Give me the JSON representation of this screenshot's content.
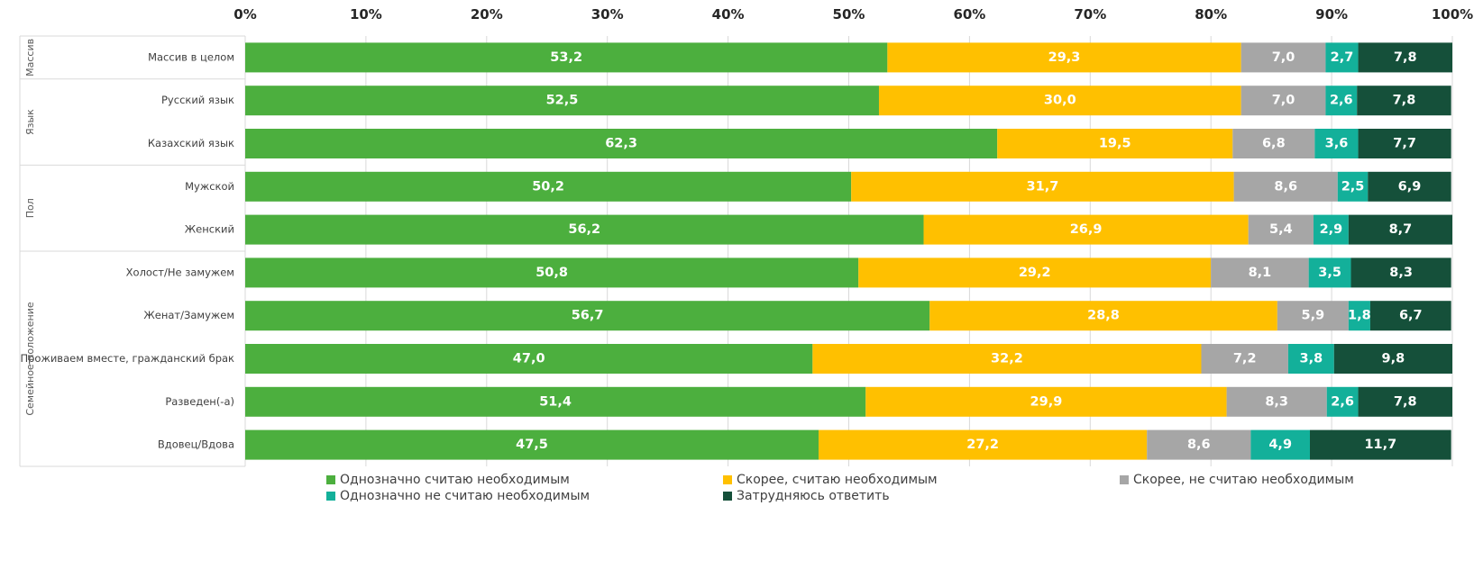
{
  "chart_data": {
    "type": "bar",
    "orientation": "horizontal",
    "stacked": true,
    "x_ticks": [
      "0%",
      "10%",
      "20%",
      "30%",
      "40%",
      "50%",
      "60%",
      "70%",
      "80%",
      "90%",
      "100%"
    ],
    "xlim": [
      0,
      100
    ],
    "grid": true,
    "legend_position": "bottom",
    "groups": [
      {
        "label": "Массив",
        "rows": 1
      },
      {
        "label": "Язык",
        "rows": 2
      },
      {
        "label": "Пол",
        "rows": 2
      },
      {
        "label": "Семейное положение",
        "rows": 5
      }
    ],
    "categories": [
      "Массив в целом",
      "Русский язык",
      "Казахский язык",
      "Мужской",
      "Женский",
      "Холост/Не замужем",
      "Женат/Замужем",
      "Проживаем вместе, гражданский брак",
      "Разведен(-а)",
      "Вдовец/Вдова"
    ],
    "series": [
      {
        "name": "Однозначно считаю необходимым",
        "color": "#4caf3e",
        "values": [
          53.2,
          52.5,
          62.3,
          50.2,
          56.2,
          50.8,
          56.7,
          47.0,
          51.4,
          47.5
        ],
        "labels": [
          "53,2",
          "52,5",
          "62,3",
          "50,2",
          "56,2",
          "50,8",
          "56,7",
          "47,0",
          "51,4",
          "47,5"
        ]
      },
      {
        "name": "Скорее, считаю необходимым",
        "color": "#ffc000",
        "values": [
          29.3,
          30.0,
          19.5,
          31.7,
          26.9,
          29.2,
          28.8,
          32.2,
          29.9,
          27.2
        ],
        "labels": [
          "29,3",
          "30,0",
          "19,5",
          "31,7",
          "26,9",
          "29,2",
          "28,8",
          "32,2",
          "29,9",
          "27,2"
        ]
      },
      {
        "name": "Скорее, не считаю необходимым",
        "color": "#a6a6a6",
        "values": [
          7.0,
          7.0,
          6.8,
          8.6,
          5.4,
          8.1,
          5.9,
          7.2,
          8.3,
          8.6
        ],
        "labels": [
          "7,0",
          "7,0",
          "6,8",
          "8,6",
          "5,4",
          "8,1",
          "5,9",
          "7,2",
          "8,3",
          "8,6"
        ]
      },
      {
        "name": "Однозначно не считаю необходимым",
        "color": "#13b09a",
        "values": [
          2.7,
          2.6,
          3.6,
          2.5,
          2.9,
          3.5,
          1.8,
          3.8,
          2.6,
          4.9
        ],
        "labels": [
          "2,7",
          "2,6",
          "3,6",
          "2,5",
          "2,9",
          "3,5",
          "1,8",
          "3,8",
          "2,6",
          "4,9"
        ]
      },
      {
        "name": "Затрудняюсь ответить",
        "color": "#15503a",
        "values": [
          7.8,
          7.8,
          7.7,
          6.9,
          8.7,
          8.3,
          6.7,
          9.8,
          7.8,
          11.7
        ],
        "labels": [
          "7,8",
          "7,8",
          "7,7",
          "6,9",
          "8,7",
          "8,3",
          "6,7",
          "9,8",
          "7,8",
          "11,7"
        ]
      }
    ]
  }
}
